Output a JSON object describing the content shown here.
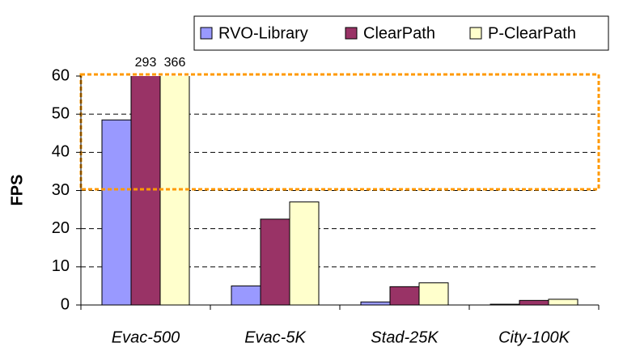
{
  "chart_data": {
    "type": "bar",
    "y_label": "FPS",
    "categories": [
      "Evac-500",
      "Evac-5K",
      "Stad-25K",
      "City-100K"
    ],
    "series": [
      {
        "name": "RVO-Library",
        "color": "#9999ff",
        "values": [
          48.5,
          5,
          0.8,
          0.2
        ]
      },
      {
        "name": "ClearPath",
        "color": "#993366",
        "values": [
          293,
          22.5,
          4.8,
          1.2
        ],
        "value_labels": [
          "293",
          null,
          null,
          null
        ]
      },
      {
        "name": "P-ClearPath",
        "color": "#ffffcc",
        "values": [
          366,
          27,
          5.8,
          1.5
        ],
        "value_labels": [
          "366",
          null,
          null,
          null
        ]
      }
    ],
    "ylim": [
      0,
      60
    ],
    "yticks": [
      0,
      10,
      20,
      30,
      40,
      50,
      60
    ],
    "grid": true,
    "legend": "top-right"
  }
}
